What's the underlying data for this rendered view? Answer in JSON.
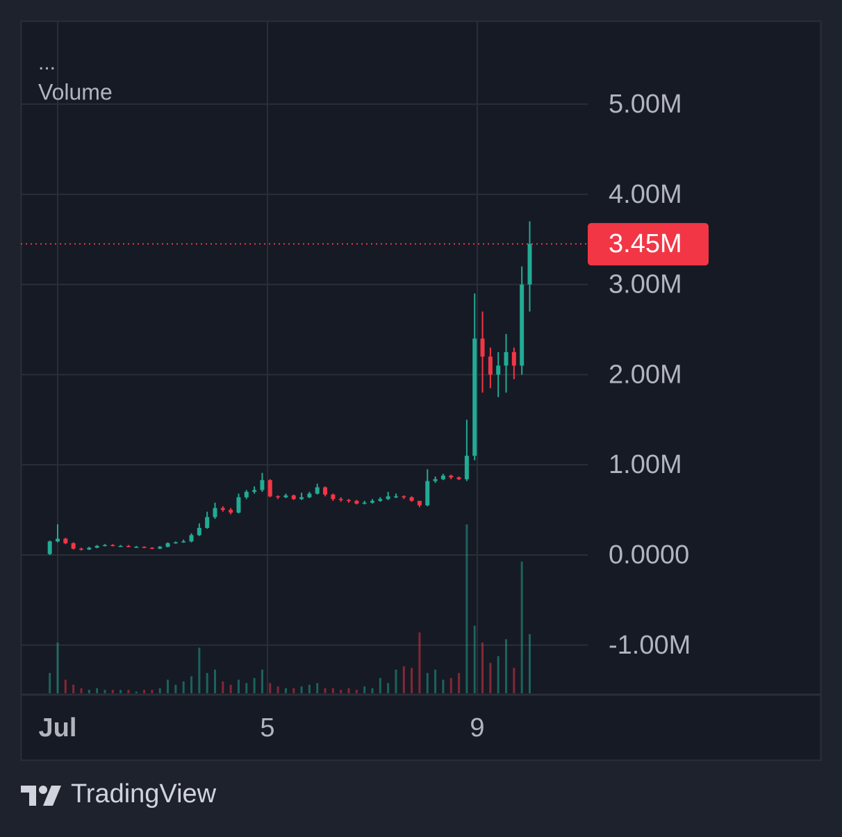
{
  "chart_data": {
    "type": "candlestick",
    "legend_menu": "...",
    "x": [
      0.85,
      1,
      1.15,
      1.3,
      1.45,
      1.6,
      1.75,
      1.9,
      2.05,
      2.2,
      2.35,
      2.5,
      2.65,
      2.8,
      2.95,
      3.1,
      3.25,
      3.4,
      3.55,
      3.7,
      3.85,
      4,
      4.15,
      4.3,
      4.45,
      4.6,
      4.75,
      4.9,
      5.05,
      5.2,
      5.35,
      5.5,
      5.65,
      5.8,
      5.95,
      6.1,
      6.25,
      6.4,
      6.55,
      6.7,
      6.85,
      7,
      7.15,
      7.3,
      7.45,
      7.6,
      7.75,
      7.9,
      8.05,
      8.2,
      8.35,
      8.5,
      8.65,
      8.8,
      8.95,
      9.1,
      9.25,
      9.4,
      9.55,
      9.7,
      9.85,
      10
    ],
    "open": [
      10000,
      150000,
      180000,
      130000,
      70000,
      60000,
      80000,
      100000,
      110000,
      100000,
      100000,
      90000,
      90000,
      80000,
      70000,
      90000,
      130000,
      140000,
      150000,
      220000,
      300000,
      420000,
      520000,
      500000,
      470000,
      640000,
      700000,
      720000,
      830000,
      650000,
      640000,
      660000,
      620000,
      640000,
      680000,
      750000,
      670000,
      620000,
      610000,
      600000,
      570000,
      580000,
      600000,
      620000,
      650000,
      650000,
      640000,
      600000,
      550000,
      820000,
      840000,
      880000,
      860000,
      840000,
      1100000,
      2400000,
      2200000,
      2000000,
      2100000,
      2250000,
      2100000,
      3000000
    ],
    "high": [
      160000,
      340000,
      190000,
      140000,
      80000,
      90000,
      110000,
      120000,
      120000,
      110000,
      110000,
      100000,
      95000,
      85000,
      100000,
      140000,
      150000,
      170000,
      240000,
      350000,
      480000,
      580000,
      540000,
      520000,
      680000,
      720000,
      760000,
      910000,
      840000,
      660000,
      680000,
      670000,
      690000,
      700000,
      790000,
      760000,
      680000,
      640000,
      620000,
      610000,
      600000,
      620000,
      640000,
      700000,
      680000,
      660000,
      650000,
      600000,
      950000,
      870000,
      900000,
      890000,
      870000,
      1500000,
      2900000,
      2700000,
      2300000,
      2250000,
      2450000,
      2300000,
      3200000,
      3700000
    ],
    "low": [
      0,
      140000,
      120000,
      60000,
      50000,
      55000,
      75000,
      95000,
      95000,
      90000,
      85000,
      80000,
      75000,
      65000,
      65000,
      85000,
      125000,
      135000,
      140000,
      210000,
      290000,
      400000,
      480000,
      450000,
      460000,
      620000,
      680000,
      700000,
      640000,
      620000,
      630000,
      610000,
      610000,
      630000,
      670000,
      650000,
      600000,
      590000,
      580000,
      560000,
      560000,
      570000,
      590000,
      610000,
      630000,
      620000,
      590000,
      530000,
      540000,
      800000,
      830000,
      840000,
      830000,
      820000,
      1050000,
      1800000,
      1850000,
      1750000,
      1800000,
      1950000,
      2000000,
      2700000
    ],
    "close": [
      150000,
      180000,
      130000,
      70000,
      60000,
      80000,
      100000,
      110000,
      100000,
      100000,
      90000,
      90000,
      80000,
      70000,
      90000,
      130000,
      140000,
      150000,
      220000,
      300000,
      420000,
      520000,
      500000,
      470000,
      640000,
      700000,
      720000,
      830000,
      650000,
      640000,
      660000,
      620000,
      640000,
      680000,
      750000,
      670000,
      620000,
      610000,
      600000,
      570000,
      580000,
      600000,
      620000,
      650000,
      650000,
      640000,
      600000,
      550000,
      820000,
      840000,
      880000,
      860000,
      840000,
      1100000,
      2400000,
      2200000,
      2000000,
      2100000,
      2250000,
      2100000,
      3000000,
      3450000
    ],
    "up_color": "#22ab94",
    "down_color": "#f23645",
    "volume": {
      "name": "Volume",
      "axis": "y2",
      "values": [
        12,
        30,
        8,
        5,
        3,
        2,
        3,
        2,
        2,
        2,
        2,
        1,
        2,
        2,
        3,
        8,
        5,
        7,
        10,
        27,
        12,
        14,
        7,
        5,
        8,
        6,
        9,
        14,
        6,
        4,
        3,
        3,
        4,
        5,
        6,
        3,
        3,
        2,
        3,
        2,
        4,
        3,
        9,
        6,
        14,
        16,
        15,
        36,
        12,
        14,
        8,
        9,
        12,
        100,
        40,
        30,
        18,
        22,
        32,
        15,
        78,
        35
      ]
    },
    "y2lim": [
      0,
      100
    ],
    "ylim": [
      -1549000,
      5924000
    ],
    "yticks": [
      {
        "value": 5000000,
        "label": "5.00M"
      },
      {
        "value": 4000000,
        "label": "4.00M"
      },
      {
        "value": 3000000,
        "label": "3.00M"
      },
      {
        "value": 2000000,
        "label": "2.00M"
      },
      {
        "value": 1000000,
        "label": "1.00M"
      },
      {
        "value": 0,
        "label": "0.0000"
      },
      {
        "value": -1000000,
        "label": "-1.00M"
      }
    ],
    "xlim": [
      0.298,
      11.106
    ],
    "xticks": [
      {
        "value": 1,
        "label": "Jul"
      },
      {
        "value": 5,
        "label": "5"
      },
      {
        "value": 9,
        "label": "9"
      }
    ],
    "grid": true,
    "last_price": {
      "value": 3450000,
      "label": "3.45M"
    }
  },
  "brand": "TradingView"
}
